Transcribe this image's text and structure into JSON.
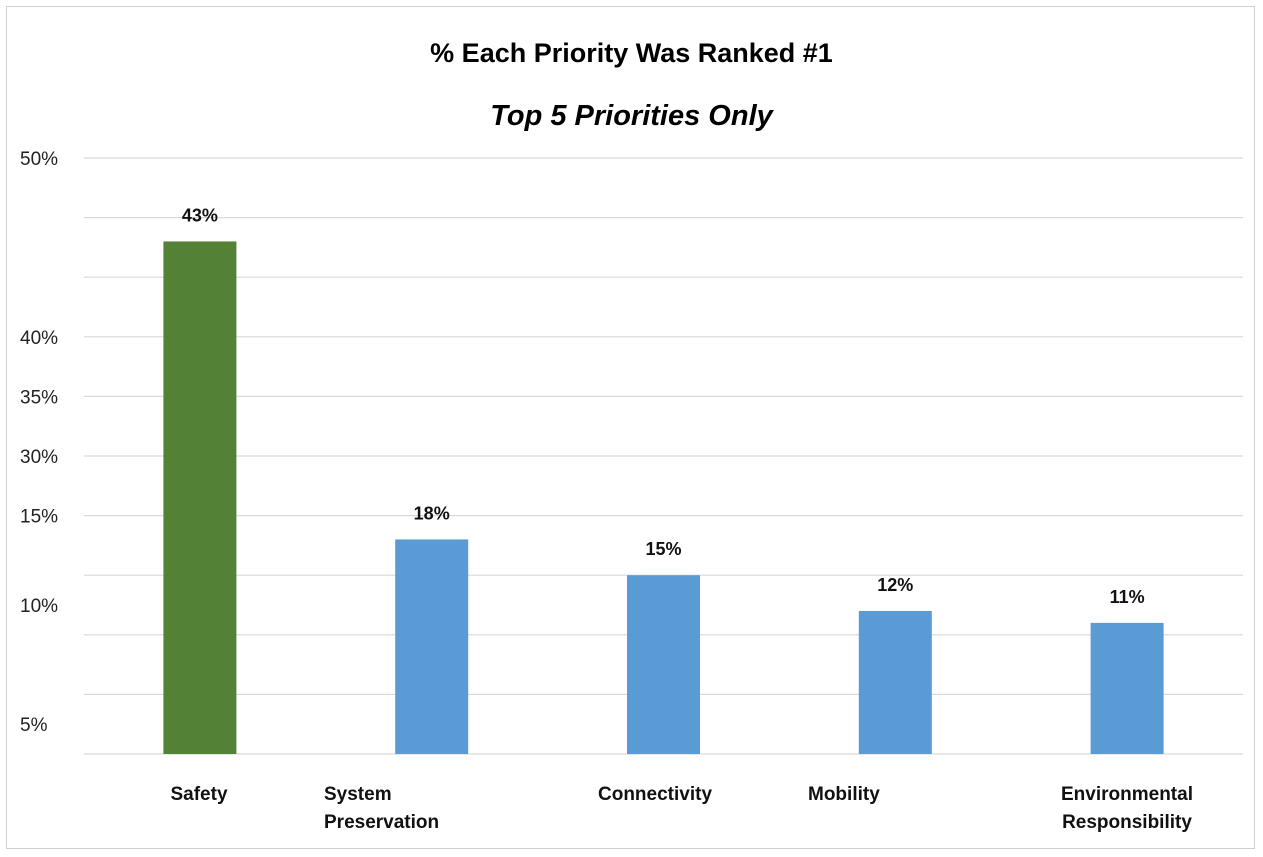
{
  "chart_data": {
    "type": "bar",
    "title": "% Each Priority Was Ranked #1",
    "subtitle": "Top 5 Priorities Only",
    "xlabel": "",
    "ylabel": "",
    "categories": [
      "Safety",
      "System Preservation",
      "Connectivity",
      "Mobility",
      "Environmental Responsibility"
    ],
    "category_lines": [
      [
        "Safety"
      ],
      [
        "System",
        "Preservation"
      ],
      [
        "Connectivity"
      ],
      [
        "Mobility"
      ],
      [
        "Environmental",
        "Responsibility"
      ]
    ],
    "values": [
      43,
      18,
      15,
      12,
      11
    ],
    "value_labels": [
      "43%",
      "18%",
      "15%",
      "12%",
      "11%"
    ],
    "bar_colors": [
      "#538135",
      "#5b9bd5",
      "#5b9bd5",
      "#5b9bd5",
      "#5b9bd5"
    ],
    "ytick_labels": [
      "5%",
      "10%",
      "15%",
      "30%",
      "35%",
      "40%",
      "50%"
    ],
    "ylim": [
      0,
      50
    ],
    "grid": true,
    "legend": "none"
  }
}
